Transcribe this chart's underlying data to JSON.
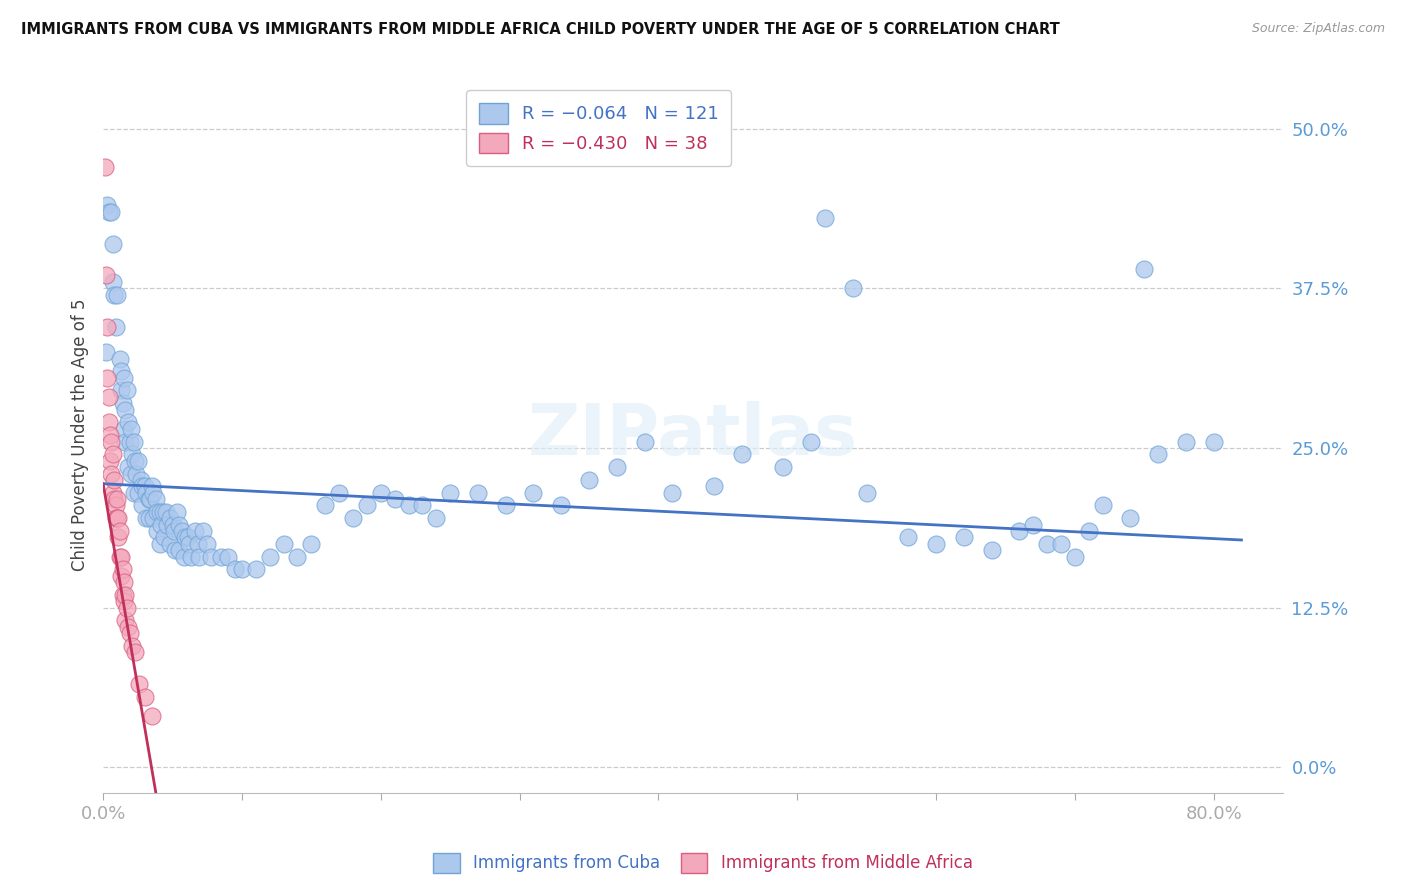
{
  "title": "IMMIGRANTS FROM CUBA VS IMMIGRANTS FROM MIDDLE AFRICA CHILD POVERTY UNDER THE AGE OF 5 CORRELATION CHART",
  "source": "Source: ZipAtlas.com",
  "ylabel": "Child Poverty Under the Age of 5",
  "ytick_labels": [
    "0.0%",
    "12.5%",
    "25.0%",
    "37.5%",
    "50.0%"
  ],
  "ytick_values": [
    0.0,
    0.125,
    0.25,
    0.375,
    0.5
  ],
  "xlim": [
    0.0,
    0.85
  ],
  "ylim": [
    -0.02,
    0.54
  ],
  "watermark": "ZIPatlas",
  "cuba_color": "#adc8ed",
  "cuba_edge": "#6fa4d8",
  "africa_color": "#f4a8bb",
  "africa_edge": "#d95f82",
  "cuba_line_color": "#4472c4",
  "africa_line_color": "#c0305a",
  "cuba_line_x": [
    0.0,
    0.82
  ],
  "cuba_line_y": [
    0.222,
    0.178
  ],
  "africa_line_x": [
    0.0,
    0.038
  ],
  "africa_line_y": [
    0.222,
    -0.02
  ],
  "cuba_scatter": [
    [
      0.002,
      0.325
    ],
    [
      0.003,
      0.44
    ],
    [
      0.004,
      0.435
    ],
    [
      0.006,
      0.435
    ],
    [
      0.007,
      0.41
    ],
    [
      0.007,
      0.38
    ],
    [
      0.008,
      0.37
    ],
    [
      0.01,
      0.37
    ],
    [
      0.009,
      0.345
    ],
    [
      0.012,
      0.32
    ],
    [
      0.013,
      0.295
    ],
    [
      0.013,
      0.31
    ],
    [
      0.015,
      0.305
    ],
    [
      0.014,
      0.285
    ],
    [
      0.015,
      0.265
    ],
    [
      0.016,
      0.28
    ],
    [
      0.017,
      0.295
    ],
    [
      0.016,
      0.255
    ],
    [
      0.018,
      0.27
    ],
    [
      0.019,
      0.255
    ],
    [
      0.018,
      0.235
    ],
    [
      0.02,
      0.265
    ],
    [
      0.021,
      0.245
    ],
    [
      0.02,
      0.23
    ],
    [
      0.022,
      0.255
    ],
    [
      0.023,
      0.24
    ],
    [
      0.022,
      0.215
    ],
    [
      0.024,
      0.23
    ],
    [
      0.025,
      0.24
    ],
    [
      0.025,
      0.215
    ],
    [
      0.027,
      0.225
    ],
    [
      0.028,
      0.22
    ],
    [
      0.028,
      0.205
    ],
    [
      0.03,
      0.22
    ],
    [
      0.031,
      0.215
    ],
    [
      0.031,
      0.195
    ],
    [
      0.033,
      0.21
    ],
    [
      0.034,
      0.21
    ],
    [
      0.033,
      0.195
    ],
    [
      0.035,
      0.22
    ],
    [
      0.036,
      0.215
    ],
    [
      0.036,
      0.195
    ],
    [
      0.038,
      0.21
    ],
    [
      0.039,
      0.2
    ],
    [
      0.039,
      0.185
    ],
    [
      0.041,
      0.2
    ],
    [
      0.042,
      0.19
    ],
    [
      0.041,
      0.175
    ],
    [
      0.043,
      0.2
    ],
    [
      0.045,
      0.2
    ],
    [
      0.044,
      0.18
    ],
    [
      0.046,
      0.19
    ],
    [
      0.048,
      0.195
    ],
    [
      0.048,
      0.175
    ],
    [
      0.05,
      0.19
    ],
    [
      0.051,
      0.185
    ],
    [
      0.052,
      0.17
    ],
    [
      0.053,
      0.2
    ],
    [
      0.055,
      0.19
    ],
    [
      0.055,
      0.17
    ],
    [
      0.057,
      0.185
    ],
    [
      0.059,
      0.18
    ],
    [
      0.058,
      0.165
    ],
    [
      0.061,
      0.18
    ],
    [
      0.062,
      0.175
    ],
    [
      0.063,
      0.165
    ],
    [
      0.066,
      0.185
    ],
    [
      0.068,
      0.175
    ],
    [
      0.069,
      0.165
    ],
    [
      0.072,
      0.185
    ],
    [
      0.075,
      0.175
    ],
    [
      0.078,
      0.165
    ],
    [
      0.085,
      0.165
    ],
    [
      0.09,
      0.165
    ],
    [
      0.095,
      0.155
    ],
    [
      0.1,
      0.155
    ],
    [
      0.11,
      0.155
    ],
    [
      0.12,
      0.165
    ],
    [
      0.13,
      0.175
    ],
    [
      0.14,
      0.165
    ],
    [
      0.15,
      0.175
    ],
    [
      0.16,
      0.205
    ],
    [
      0.17,
      0.215
    ],
    [
      0.18,
      0.195
    ],
    [
      0.19,
      0.205
    ],
    [
      0.2,
      0.215
    ],
    [
      0.21,
      0.21
    ],
    [
      0.22,
      0.205
    ],
    [
      0.23,
      0.205
    ],
    [
      0.24,
      0.195
    ],
    [
      0.25,
      0.215
    ],
    [
      0.27,
      0.215
    ],
    [
      0.29,
      0.205
    ],
    [
      0.31,
      0.215
    ],
    [
      0.33,
      0.205
    ],
    [
      0.35,
      0.225
    ],
    [
      0.37,
      0.235
    ],
    [
      0.39,
      0.255
    ],
    [
      0.41,
      0.215
    ],
    [
      0.44,
      0.22
    ],
    [
      0.46,
      0.245
    ],
    [
      0.49,
      0.235
    ],
    [
      0.51,
      0.255
    ],
    [
      0.52,
      0.43
    ],
    [
      0.54,
      0.375
    ],
    [
      0.55,
      0.215
    ],
    [
      0.58,
      0.18
    ],
    [
      0.6,
      0.175
    ],
    [
      0.62,
      0.18
    ],
    [
      0.64,
      0.17
    ],
    [
      0.66,
      0.185
    ],
    [
      0.67,
      0.19
    ],
    [
      0.68,
      0.175
    ],
    [
      0.69,
      0.175
    ],
    [
      0.7,
      0.165
    ],
    [
      0.71,
      0.185
    ],
    [
      0.72,
      0.205
    ],
    [
      0.74,
      0.195
    ],
    [
      0.75,
      0.39
    ],
    [
      0.76,
      0.245
    ],
    [
      0.78,
      0.255
    ],
    [
      0.8,
      0.255
    ]
  ],
  "africa_scatter": [
    [
      0.001,
      0.47
    ],
    [
      0.002,
      0.385
    ],
    [
      0.003,
      0.345
    ],
    [
      0.003,
      0.305
    ],
    [
      0.004,
      0.29
    ],
    [
      0.004,
      0.27
    ],
    [
      0.005,
      0.26
    ],
    [
      0.005,
      0.24
    ],
    [
      0.006,
      0.255
    ],
    [
      0.006,
      0.23
    ],
    [
      0.007,
      0.245
    ],
    [
      0.007,
      0.215
    ],
    [
      0.008,
      0.225
    ],
    [
      0.008,
      0.21
    ],
    [
      0.009,
      0.205
    ],
    [
      0.009,
      0.195
    ],
    [
      0.01,
      0.21
    ],
    [
      0.01,
      0.195
    ],
    [
      0.011,
      0.195
    ],
    [
      0.011,
      0.18
    ],
    [
      0.012,
      0.185
    ],
    [
      0.012,
      0.165
    ],
    [
      0.013,
      0.165
    ],
    [
      0.013,
      0.15
    ],
    [
      0.014,
      0.155
    ],
    [
      0.014,
      0.135
    ],
    [
      0.015,
      0.145
    ],
    [
      0.015,
      0.13
    ],
    [
      0.016,
      0.135
    ],
    [
      0.016,
      0.115
    ],
    [
      0.017,
      0.125
    ],
    [
      0.018,
      0.11
    ],
    [
      0.019,
      0.105
    ],
    [
      0.021,
      0.095
    ],
    [
      0.023,
      0.09
    ],
    [
      0.026,
      0.065
    ],
    [
      0.03,
      0.055
    ],
    [
      0.035,
      0.04
    ]
  ]
}
